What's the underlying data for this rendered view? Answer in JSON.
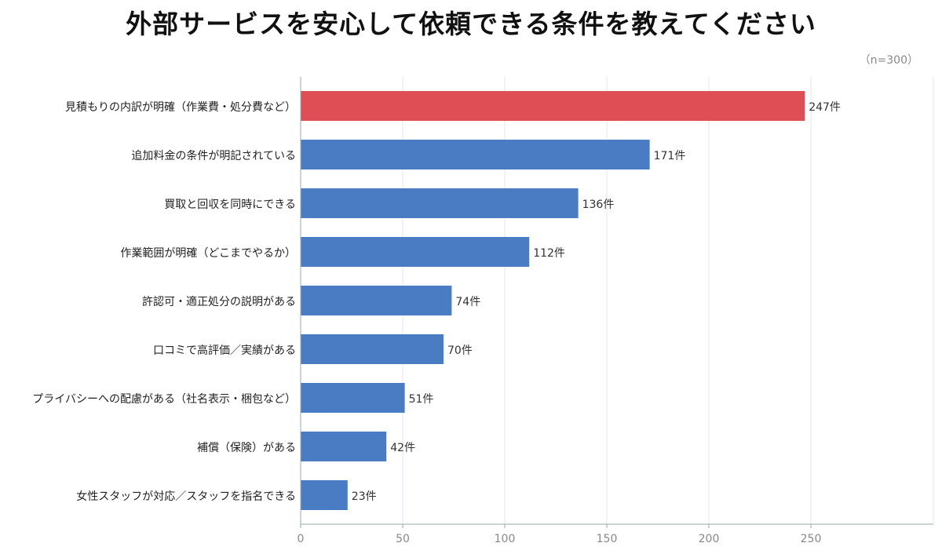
{
  "title": "外部サービスを安心して依頼できる条件を教えてください",
  "note": "（n=300）",
  "chart_data": {
    "type": "bar",
    "orientation": "horizontal",
    "title": "外部サービスを安心して依頼できる条件を教えてください",
    "xlabel": "",
    "ylabel": "",
    "xlim": [
      0,
      310
    ],
    "ticks": [
      0,
      50,
      100,
      150,
      200,
      250
    ],
    "value_suffix": "件",
    "grid": true,
    "highlight_color": "#e04e55",
    "bar_color": "#4a7cc4",
    "categories": [
      "見積もりの内訳が明確（作業費・処分費など）",
      "追加料金の条件が明記されている",
      "買取と回収を同時にできる",
      "作業範囲が明確（どこまでやるか）",
      "許認可・適正処分の説明がある",
      "口コミで高評価／実績がある",
      "プライバシーへの配慮がある（社名表示・梱包など）",
      "補償（保険）がある",
      "女性スタッフが対応／スタッフを指名できる"
    ],
    "values": [
      247,
      171,
      136,
      112,
      74,
      70,
      51,
      42,
      23
    ],
    "highlight_index": 0
  }
}
